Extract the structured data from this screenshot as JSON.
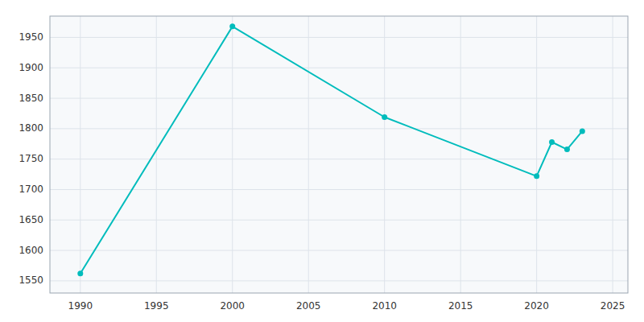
{
  "chart_data": {
    "type": "line",
    "x": [
      1990,
      2000,
      2010,
      2020,
      2021,
      2022,
      2023
    ],
    "values": [
      1562,
      1968,
      1819,
      1722,
      1778,
      1766,
      1796
    ],
    "color": "#00BCBC",
    "marker": "circle",
    "xlim": [
      1988,
      2026
    ],
    "ylim": [
      1530,
      1985
    ],
    "xticks": [
      1990,
      1995,
      2000,
      2005,
      2010,
      2015,
      2020,
      2025
    ],
    "yticks": [
      1550,
      1600,
      1650,
      1700,
      1750,
      1800,
      1850,
      1900,
      1950
    ],
    "grid": true
  }
}
